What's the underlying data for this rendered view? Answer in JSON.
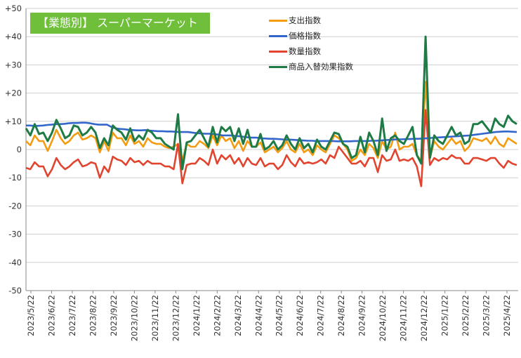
{
  "chart_data": {
    "type": "line",
    "title": "【業態別】 スーパーマーケット",
    "xlabel": "",
    "ylabel": "",
    "ylim": [
      -50,
      50
    ],
    "y_ticks": [
      50,
      40,
      30,
      20,
      10,
      0,
      -10,
      -20,
      -30,
      -40,
      -50
    ],
    "y_tick_labels": [
      "+50",
      "+40",
      "+30",
      "+20",
      "+10",
      "0",
      "-10",
      "-20",
      "-30",
      "-40",
      "-50"
    ],
    "x_tick_labels": [
      "2023/5/22",
      "2023/6/22",
      "2023/7/22",
      "2023/8/22",
      "2023/9/22",
      "2023/10/22",
      "2023/11/22",
      "2023/12/22",
      "2024/1/22",
      "2024/2/22",
      "2024/3/22",
      "2024/4/22",
      "2024/5/22",
      "2024/6/22",
      "2024/7/22",
      "2024/8/22",
      "2024/9/22",
      "2024/10/22",
      "2024/11/22",
      "2024/12/22",
      "2025/1/22",
      "2025/2/22",
      "2025/3/22",
      "2025/4/22"
    ],
    "grid": "horizontal",
    "legend_position": "top-right",
    "series": [
      {
        "name": "支出指数",
        "color": "#f39c12",
        "values": [
          3,
          1.5,
          5,
          3,
          3,
          -0.5,
          3,
          7,
          4,
          2,
          3,
          5,
          6,
          3.5,
          4,
          5,
          4,
          -1,
          3,
          -0.5,
          6,
          4,
          4,
          1.5,
          5,
          2,
          3,
          1,
          4,
          2.5,
          2,
          2,
          1,
          0.5,
          1,
          2,
          -4,
          2,
          1,
          1,
          3,
          2,
          0.5,
          5,
          1.5,
          5,
          3,
          4,
          0.5,
          3,
          -0.5,
          3,
          1,
          1,
          2.5,
          -1,
          0,
          1,
          -1,
          0.5,
          3,
          0,
          -1,
          2,
          -1,
          0,
          -2,
          1.5,
          0,
          -1,
          2,
          5,
          4,
          2,
          0,
          -4,
          -3,
          0,
          -2,
          2,
          0.5,
          -3,
          3,
          0,
          1,
          6,
          0,
          1,
          1,
          2,
          -2,
          -4,
          24,
          -3,
          3,
          1,
          0,
          2,
          4,
          2,
          3,
          -0.5,
          1,
          4,
          3.5,
          3,
          4,
          2,
          4.5,
          2,
          1,
          4,
          3,
          2
        ]
      },
      {
        "name": "価格指数",
        "color": "#3366cc",
        "values": [
          8.5,
          8.5,
          8.3,
          8.4,
          8.5,
          8.7,
          8.8,
          9,
          9,
          9.1,
          9.3,
          9.4,
          9.4,
          9.5,
          9.5,
          9.3,
          9,
          8.8,
          8.8,
          8.8,
          8,
          7.5,
          7.3,
          7.2,
          7,
          6.9,
          6.8,
          6.8,
          6.9,
          6.7,
          6.6,
          6.5,
          6.5,
          6.4,
          6.4,
          6.3,
          6.2,
          6.2,
          6.2,
          6,
          5.8,
          5.7,
          5.6,
          5.6,
          5.5,
          5.3,
          5,
          5,
          5,
          4.8,
          4.7,
          4.5,
          4.3,
          4.2,
          4.2,
          4,
          3.9,
          3.8,
          3.8,
          3.7,
          3.6,
          3.5,
          3.5,
          3.4,
          3.3,
          3.2,
          3.1,
          3.1,
          3,
          3,
          3,
          3,
          3,
          2.9,
          2.9,
          2.9,
          2.9,
          3,
          3,
          3,
          3,
          3.1,
          3.1,
          3.2,
          3.3,
          3.4,
          3.5,
          3.6,
          3.6,
          3.7,
          3.7,
          3.8,
          3.8,
          3.9,
          4,
          4.1,
          4.2,
          4.3,
          4.4,
          4.5,
          4.6,
          4.7,
          4.8,
          4.9,
          5,
          5.2,
          5.4,
          5.6,
          5.8,
          6,
          6.2,
          6.3,
          6.4,
          6.4,
          6.3,
          6.2
        ]
      },
      {
        "name": "数量指数",
        "color": "#e2452f",
        "values": [
          -6.5,
          -7,
          -4.5,
          -6,
          -6,
          -9.5,
          -7,
          -3,
          -5.5,
          -7,
          -6,
          -4.5,
          -3.5,
          -6,
          -5.5,
          -4.5,
          -5,
          -10,
          -6,
          -8,
          -2.5,
          -3.5,
          -4,
          -5.5,
          -3,
          -4.5,
          -4,
          -5.5,
          -4,
          -5,
          -5,
          -5,
          -6,
          -6,
          -7,
          2,
          -12,
          -5.5,
          -5,
          -5,
          -3,
          -4,
          -5.5,
          0,
          -5,
          -2,
          -3.5,
          -2,
          -5,
          -3,
          -6,
          -3,
          -5,
          -5.5,
          -3,
          -6,
          -5,
          -5,
          -7,
          -5.5,
          -2,
          -4.5,
          -6,
          -3,
          -5,
          -4.5,
          -5,
          -4.5,
          -3.5,
          -5,
          -2,
          -3,
          1,
          -1,
          -3,
          -5,
          -5,
          -4,
          -6,
          -3,
          -3,
          -8,
          -2,
          -4,
          -3.5,
          0,
          -4,
          -3.5,
          -4,
          -3,
          -6,
          -13,
          14,
          -5.5,
          -3,
          -4,
          -3,
          -3.5,
          -2,
          -3,
          -3,
          -5,
          -5,
          -3,
          -3,
          -3.5,
          -4,
          -3,
          -3,
          -5,
          -6.5,
          -4,
          -5,
          -5.5
        ]
      },
      {
        "name": "商品入替効果指数",
        "color": "#1e7b45",
        "values": [
          7.5,
          5,
          9,
          5.5,
          6,
          3,
          6,
          10.5,
          7.5,
          4,
          5,
          8.5,
          8,
          5,
          6,
          8,
          6,
          0.5,
          4,
          1.5,
          8.5,
          7,
          6,
          3.5,
          7.5,
          3,
          5,
          3.5,
          7,
          6,
          4,
          4,
          2,
          1,
          0,
          12.5,
          -7,
          2.5,
          3,
          5,
          7,
          4,
          1,
          8,
          2.5,
          8,
          6.5,
          8,
          3,
          7.5,
          2,
          7,
          1,
          1,
          5.5,
          0,
          1,
          3,
          0,
          1.5,
          5,
          2,
          0,
          4,
          0.5,
          2,
          -1,
          3.5,
          1,
          0,
          3,
          6,
          5.5,
          2,
          1,
          -3,
          -2,
          4.5,
          -1,
          6,
          3,
          -2,
          11,
          -0.5,
          4,
          5,
          3,
          2,
          5,
          8,
          -2,
          -5,
          40,
          -3,
          5,
          3,
          2,
          5,
          8,
          5,
          6,
          2,
          3,
          9,
          9,
          10,
          8,
          6,
          11,
          9,
          8,
          12,
          10,
          9
        ]
      }
    ]
  }
}
